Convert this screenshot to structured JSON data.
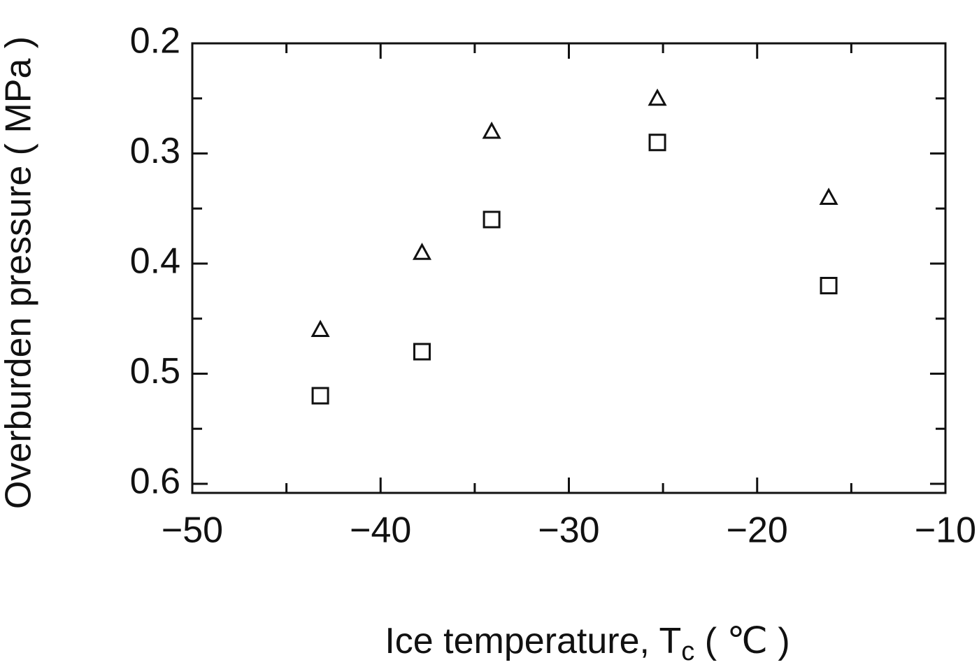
{
  "chart_data": {
    "type": "scatter",
    "ylabel": "Overburden pressure ( MPa )",
    "xlabel": [
      "Ice temperature, T",
      "c",
      " ( ℃ )"
    ],
    "xlim": [
      -50,
      -10
    ],
    "xticks": [
      {
        "value": -50,
        "label": "−50"
      },
      {
        "value": -40,
        "label": "−40"
      },
      {
        "value": -30,
        "label": "−30"
      },
      {
        "value": -20,
        "label": "−20"
      },
      {
        "value": -10,
        "label": "−10"
      }
    ],
    "xminor": [
      -45,
      -35,
      -25,
      -15
    ],
    "ylim": [
      0.2,
      0.6
    ],
    "y_inverted": true,
    "yticks": [
      0.2,
      0.3,
      0.4,
      0.5,
      0.6
    ],
    "yminor": [
      0.25,
      0.35,
      0.45,
      0.55
    ],
    "series": [
      {
        "marker": "triangle",
        "color": "#111111",
        "x": [
          -43.2,
          -37.8,
          -34.1,
          -25.3,
          -16.2
        ],
        "values": [
          0.46,
          0.39,
          0.28,
          0.25,
          0.34
        ]
      },
      {
        "marker": "square",
        "color": "#111111",
        "x": [
          -43.2,
          -37.8,
          -34.1,
          -25.3,
          -16.2
        ],
        "values": [
          0.52,
          0.48,
          0.36,
          0.29,
          0.42
        ]
      }
    ]
  }
}
